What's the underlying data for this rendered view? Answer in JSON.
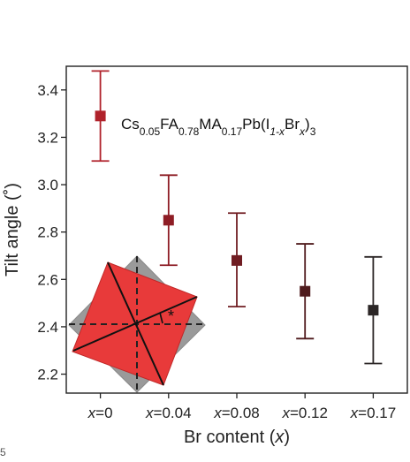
{
  "chart_data": {
    "type": "scatter",
    "title": "",
    "annotation": {
      "formula_parts": [
        {
          "t": "Cs",
          "s": "n"
        },
        {
          "t": "0.05",
          "s": "sub"
        },
        {
          "t": "FA",
          "s": "n"
        },
        {
          "t": "0.78",
          "s": "sub"
        },
        {
          "t": "MA",
          "s": "n"
        },
        {
          "t": "0.17",
          "s": "sub"
        },
        {
          "t": "Pb(I",
          "s": "n"
        },
        {
          "t": "1-x",
          "s": "sub-i"
        },
        {
          "t": "Br",
          "s": "n"
        },
        {
          "t": "x",
          "s": "sub-i"
        },
        {
          "t": ")",
          "s": "n"
        },
        {
          "t": "3",
          "s": "sub"
        }
      ],
      "star": "*"
    },
    "xlabel_parts": [
      {
        "t": "Br content (",
        "s": "n"
      },
      {
        "t": "x",
        "s": "i"
      },
      {
        "t": ")",
        "s": "n"
      }
    ],
    "ylabel": "Tilt angle (˚)",
    "categories": [
      "x=0",
      "x=0.04",
      "x=0.08",
      "x=0.12",
      "x=0.17"
    ],
    "values": [
      3.29,
      2.85,
      2.68,
      2.55,
      2.47
    ],
    "error_low": [
      3.1,
      2.66,
      2.485,
      2.35,
      2.245
    ],
    "error_high": [
      3.48,
      3.04,
      2.88,
      2.75,
      2.695
    ],
    "colors": [
      "#b0222b",
      "#8e1d25",
      "#701d22",
      "#4f1b1d",
      "#2b2626"
    ],
    "ylim": [
      2.12,
      3.5
    ],
    "yticks": [
      "2.2",
      "2.4",
      "2.6",
      "2.8",
      "3.0",
      "3.2",
      "3.4"
    ],
    "grid": false,
    "legend": "none"
  },
  "stray_label": "5"
}
